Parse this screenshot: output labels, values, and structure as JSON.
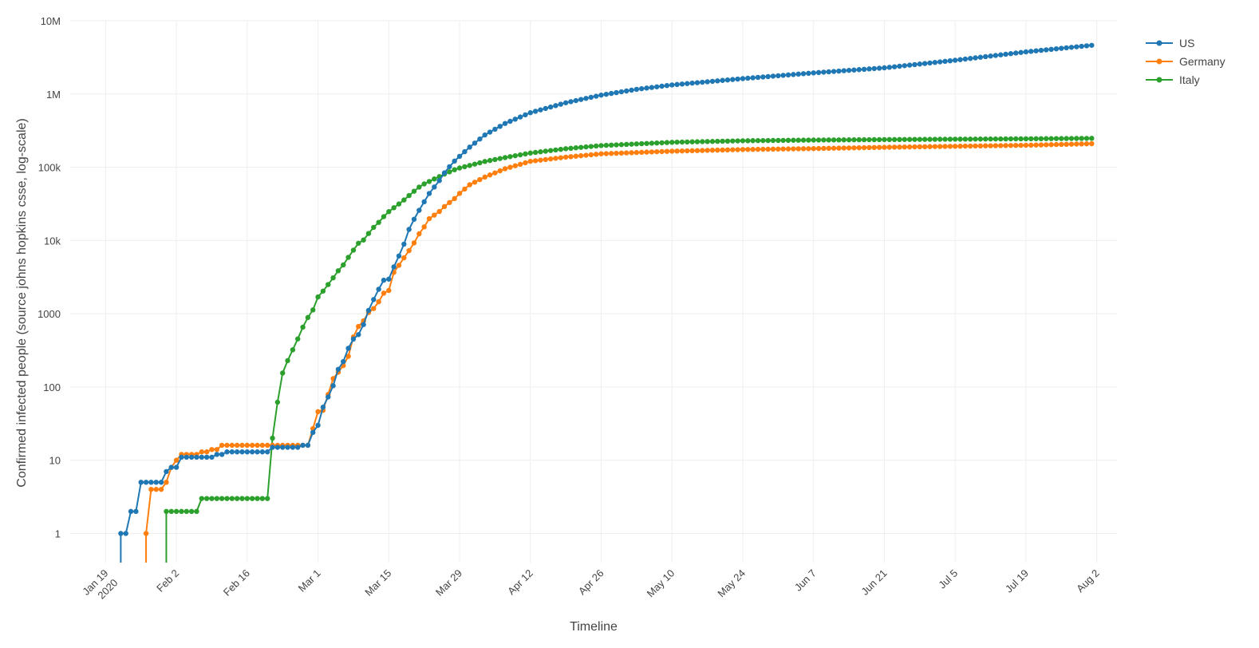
{
  "chart_data": {
    "type": "line",
    "xlabel": "Timeline",
    "ylabel": "Confirmed infected people (source johns hopkins csse, log-scale)",
    "y_scale": "log",
    "ylim": [
      0.4,
      10000000
    ],
    "xlim": [
      "2020-01-12",
      "2020-08-06"
    ],
    "grid": true,
    "legend_position": "top-right",
    "x_ticks": [
      {
        "date": "2020-01-19",
        "label": "Jan 19",
        "sub": "2020"
      },
      {
        "date": "2020-02-02",
        "label": "Feb 2"
      },
      {
        "date": "2020-02-16",
        "label": "Feb 16"
      },
      {
        "date": "2020-03-01",
        "label": "Mar 1"
      },
      {
        "date": "2020-03-15",
        "label": "Mar 15"
      },
      {
        "date": "2020-03-29",
        "label": "Mar 29"
      },
      {
        "date": "2020-04-12",
        "label": "Apr 12"
      },
      {
        "date": "2020-04-26",
        "label": "Apr 26"
      },
      {
        "date": "2020-05-10",
        "label": "May 10"
      },
      {
        "date": "2020-05-24",
        "label": "May 24"
      },
      {
        "date": "2020-06-07",
        "label": "Jun 7"
      },
      {
        "date": "2020-06-21",
        "label": "Jun 21"
      },
      {
        "date": "2020-07-05",
        "label": "Jul 5"
      },
      {
        "date": "2020-07-19",
        "label": "Jul 19"
      },
      {
        "date": "2020-08-02",
        "label": "Aug 2"
      }
    ],
    "y_ticks": [
      {
        "value": 1,
        "label": "1"
      },
      {
        "value": 10,
        "label": "10"
      },
      {
        "value": 100,
        "label": "100"
      },
      {
        "value": 1000,
        "label": "1000"
      },
      {
        "value": 10000,
        "label": "10k"
      },
      {
        "value": 100000,
        "label": "100k"
      },
      {
        "value": 1000000,
        "label": "1M"
      },
      {
        "value": 10000000,
        "label": "10M"
      }
    ],
    "series": [
      {
        "name": "US",
        "color": "#1f77b4",
        "start_date": "2020-01-22",
        "end_date": "2020-08-01",
        "anchors": [
          [
            "2020-01-22",
            1
          ],
          [
            "2020-01-23",
            1
          ],
          [
            "2020-01-24",
            2
          ],
          [
            "2020-01-25",
            2
          ],
          [
            "2020-01-26",
            5
          ],
          [
            "2020-01-30",
            5
          ],
          [
            "2020-01-31",
            7
          ],
          [
            "2020-02-01",
            8
          ],
          [
            "2020-02-02",
            8
          ],
          [
            "2020-02-03",
            11
          ],
          [
            "2020-02-09",
            11
          ],
          [
            "2020-02-10",
            12
          ],
          [
            "2020-02-12",
            13
          ],
          [
            "2020-02-20",
            13
          ],
          [
            "2020-02-21",
            15
          ],
          [
            "2020-02-26",
            15
          ],
          [
            "2020-02-27",
            16
          ],
          [
            "2020-02-28",
            16
          ],
          [
            "2020-02-29",
            24
          ],
          [
            "2020-03-01",
            30
          ],
          [
            "2020-03-02",
            53
          ],
          [
            "2020-03-03",
            73
          ],
          [
            "2020-03-04",
            104
          ],
          [
            "2020-03-05",
            174
          ],
          [
            "2020-03-06",
            222
          ],
          [
            "2020-03-07",
            337
          ],
          [
            "2020-03-08",
            451
          ],
          [
            "2020-03-09",
            519
          ],
          [
            "2020-03-10",
            711
          ],
          [
            "2020-03-11",
            1109
          ],
          [
            "2020-03-12",
            1561
          ],
          [
            "2020-03-13",
            2157
          ],
          [
            "2020-03-14",
            2870
          ],
          [
            "2020-03-15",
            2968
          ],
          [
            "2020-03-16",
            4360
          ],
          [
            "2020-03-17",
            6141
          ],
          [
            "2020-03-18",
            8914
          ],
          [
            "2020-03-19",
            14153
          ],
          [
            "2020-03-20",
            19479
          ],
          [
            "2020-03-21",
            25818
          ],
          [
            "2020-03-22",
            33756
          ],
          [
            "2020-03-23",
            43845
          ],
          [
            "2020-03-24",
            53740
          ],
          [
            "2020-03-25",
            65778
          ],
          [
            "2020-03-26",
            83836
          ],
          [
            "2020-03-27",
            101657
          ],
          [
            "2020-03-28",
            121465
          ],
          [
            "2020-03-29",
            140909
          ],
          [
            "2020-03-31",
            188172
          ],
          [
            "2020-04-03",
            275586
          ],
          [
            "2020-04-07",
            396223
          ],
          [
            "2020-04-12",
            555313
          ],
          [
            "2020-04-19",
            759086
          ],
          [
            "2020-04-26",
            965785
          ],
          [
            "2020-05-03",
            1158040
          ],
          [
            "2020-05-10",
            1329260
          ],
          [
            "2020-05-24",
            1622612
          ],
          [
            "2020-06-07",
            1942363
          ],
          [
            "2020-06-21",
            2275645
          ],
          [
            "2020-07-05",
            2888635
          ],
          [
            "2020-07-19",
            3762945
          ],
          [
            "2020-08-01",
            4620444
          ]
        ]
      },
      {
        "name": "Germany",
        "color": "#ff7f0e",
        "start_date": "2020-01-27",
        "end_date": "2020-08-01",
        "anchors": [
          [
            "2020-01-27",
            1
          ],
          [
            "2020-01-28",
            4
          ],
          [
            "2020-01-31",
            5
          ],
          [
            "2020-02-01",
            8
          ],
          [
            "2020-02-02",
            10
          ],
          [
            "2020-02-03",
            12
          ],
          [
            "2020-02-06",
            12
          ],
          [
            "2020-02-07",
            13
          ],
          [
            "2020-02-09",
            14
          ],
          [
            "2020-02-11",
            16
          ],
          [
            "2020-02-28",
            16
          ],
          [
            "2020-02-29",
            27
          ],
          [
            "2020-03-01",
            46
          ],
          [
            "2020-03-02",
            48
          ],
          [
            "2020-03-03",
            79
          ],
          [
            "2020-03-04",
            130
          ],
          [
            "2020-03-05",
            159
          ],
          [
            "2020-03-06",
            196
          ],
          [
            "2020-03-07",
            262
          ],
          [
            "2020-03-08",
            482
          ],
          [
            "2020-03-09",
            670
          ],
          [
            "2020-03-10",
            799
          ],
          [
            "2020-03-11",
            1040
          ],
          [
            "2020-03-12",
            1176
          ],
          [
            "2020-03-13",
            1457
          ],
          [
            "2020-03-14",
            1908
          ],
          [
            "2020-03-15",
            2078
          ],
          [
            "2020-03-16",
            3675
          ],
          [
            "2020-03-17",
            4585
          ],
          [
            "2020-03-18",
            5795
          ],
          [
            "2020-03-19",
            7272
          ],
          [
            "2020-03-20",
            9257
          ],
          [
            "2020-03-21",
            12327
          ],
          [
            "2020-03-22",
            15320
          ],
          [
            "2020-03-23",
            19848
          ],
          [
            "2020-03-24",
            22213
          ],
          [
            "2020-03-25",
            24873
          ],
          [
            "2020-03-26",
            29056
          ],
          [
            "2020-03-27",
            32986
          ],
          [
            "2020-03-28",
            37323
          ],
          [
            "2020-03-29",
            43938
          ],
          [
            "2020-03-31",
            57695
          ],
          [
            "2020-04-03",
            73522
          ],
          [
            "2020-04-07",
            95391
          ],
          [
            "2020-04-12",
            120479
          ],
          [
            "2020-04-19",
            137439
          ],
          [
            "2020-04-26",
            152438
          ],
          [
            "2020-05-10",
            165664
          ],
          [
            "2020-05-24",
            174478
          ],
          [
            "2020-06-07",
            179728
          ],
          [
            "2020-06-21",
            187184
          ],
          [
            "2020-07-05",
            193285
          ],
          [
            "2020-07-19",
            199710
          ],
          [
            "2020-08-01",
            209653
          ]
        ]
      },
      {
        "name": "Italy",
        "color": "#2ca02c",
        "start_date": "2020-01-31",
        "end_date": "2020-08-01",
        "anchors": [
          [
            "2020-01-31",
            2
          ],
          [
            "2020-02-06",
            2
          ],
          [
            "2020-02-07",
            3
          ],
          [
            "2020-02-20",
            3
          ],
          [
            "2020-02-21",
            20
          ],
          [
            "2020-02-22",
            62
          ],
          [
            "2020-02-23",
            155
          ],
          [
            "2020-02-24",
            229
          ],
          [
            "2020-02-25",
            322
          ],
          [
            "2020-02-26",
            453
          ],
          [
            "2020-02-27",
            655
          ],
          [
            "2020-02-28",
            888
          ],
          [
            "2020-02-29",
            1128
          ],
          [
            "2020-03-01",
            1694
          ],
          [
            "2020-03-02",
            2036
          ],
          [
            "2020-03-03",
            2502
          ],
          [
            "2020-03-04",
            3089
          ],
          [
            "2020-03-05",
            3858
          ],
          [
            "2020-03-06",
            4636
          ],
          [
            "2020-03-07",
            5883
          ],
          [
            "2020-03-08",
            7375
          ],
          [
            "2020-03-09",
            9172
          ],
          [
            "2020-03-10",
            10149
          ],
          [
            "2020-03-11",
            12462
          ],
          [
            "2020-03-12",
            15113
          ],
          [
            "2020-03-13",
            17660
          ],
          [
            "2020-03-14",
            21157
          ],
          [
            "2020-03-15",
            24747
          ],
          [
            "2020-03-16",
            27980
          ],
          [
            "2020-03-17",
            31506
          ],
          [
            "2020-03-18",
            35713
          ],
          [
            "2020-03-19",
            41035
          ],
          [
            "2020-03-20",
            47021
          ],
          [
            "2020-03-21",
            53578
          ],
          [
            "2020-03-22",
            59138
          ],
          [
            "2020-03-23",
            63927
          ],
          [
            "2020-03-24",
            69176
          ],
          [
            "2020-03-25",
            74386
          ],
          [
            "2020-03-26",
            80589
          ],
          [
            "2020-03-27",
            86498
          ],
          [
            "2020-03-28",
            92472
          ],
          [
            "2020-03-29",
            97689
          ],
          [
            "2020-03-31",
            105792
          ],
          [
            "2020-04-03",
            119827
          ],
          [
            "2020-04-07",
            135586
          ],
          [
            "2020-04-12",
            156363
          ],
          [
            "2020-04-19",
            178972
          ],
          [
            "2020-04-26",
            197675
          ],
          [
            "2020-05-10",
            219070
          ],
          [
            "2020-05-24",
            229858
          ],
          [
            "2020-06-07",
            234998
          ],
          [
            "2020-06-21",
            238499
          ],
          [
            "2020-07-05",
            241611
          ],
          [
            "2020-07-19",
            244434
          ],
          [
            "2020-08-01",
            248070
          ]
        ]
      }
    ]
  }
}
